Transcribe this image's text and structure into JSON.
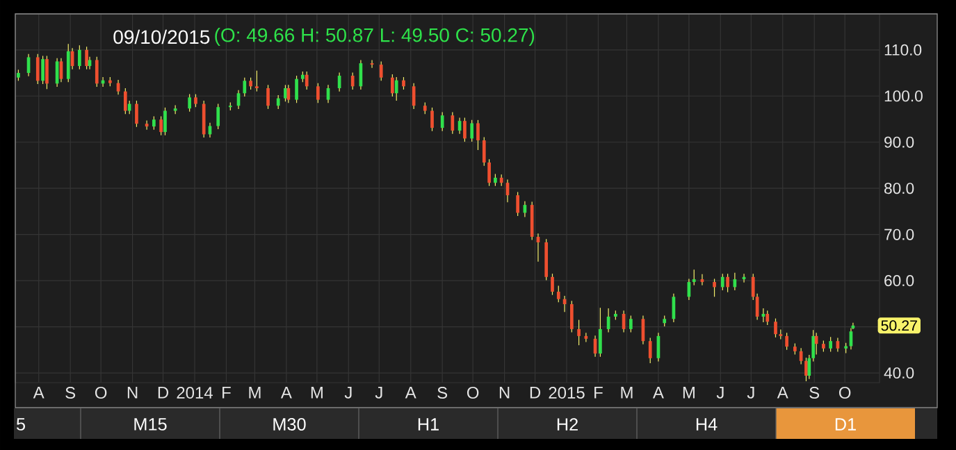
{
  "chart_data": {
    "type": "candlestick",
    "title": "09/10/2015",
    "subtitle": "(O: 49.66 H: 50.87 L: 49.50 C: 50.27)",
    "x": [
      "2013-07-12",
      "2013-07-22",
      "2013-07-31",
      "2013-08-05",
      "2013-08-09",
      "2013-08-19",
      "2013-08-23",
      "2013-08-30",
      "2013-09-03",
      "2013-09-10",
      "2013-09-17",
      "2013-09-20",
      "2013-09-27",
      "2013-10-03",
      "2013-10-10",
      "2013-10-18",
      "2013-10-25",
      "2013-10-29",
      "2013-11-05",
      "2013-11-15",
      "2013-11-22",
      "2013-11-29",
      "2013-12-03",
      "2013-12-13",
      "2013-12-27",
      "2014-01-02",
      "2014-01-10",
      "2014-01-16",
      "2014-01-24",
      "2014-02-05",
      "2014-02-13",
      "2014-02-19",
      "2014-02-25",
      "2014-03-03",
      "2014-03-14",
      "2014-03-24",
      "2014-03-31",
      "2014-04-03",
      "2014-04-11",
      "2014-04-17",
      "2014-04-21",
      "2014-05-02",
      "2014-05-12",
      "2014-05-23",
      "2014-06-05",
      "2014-06-13",
      "2014-06-24",
      "2014-07-03",
      "2014-07-14",
      "2014-07-18",
      "2014-07-25",
      "2014-08-04",
      "2014-08-15",
      "2014-08-22",
      "2014-09-01",
      "2014-09-11",
      "2014-09-18",
      "2014-09-23",
      "2014-09-30",
      "2014-10-06",
      "2014-10-12",
      "2014-10-17",
      "2014-10-23",
      "2014-10-29",
      "2014-11-04",
      "2014-11-14",
      "2014-11-21",
      "2014-11-28",
      "2014-12-04",
      "2014-12-12",
      "2014-12-18",
      "2014-12-24",
      "2014-12-30",
      "2015-01-06",
      "2015-01-13",
      "2015-01-20",
      "2015-01-29",
      "2015-02-03",
      "2015-02-11",
      "2015-02-18",
      "2015-02-26",
      "2015-03-05",
      "2015-03-17",
      "2015-03-24",
      "2015-04-01",
      "2015-04-07",
      "2015-04-16",
      "2015-05-01",
      "2015-05-06",
      "2015-05-14",
      "2015-05-26",
      "2015-06-03",
      "2015-06-08",
      "2015-06-15",
      "2015-06-24",
      "2015-07-03",
      "2015-07-07",
      "2015-07-13",
      "2015-07-17",
      "2015-07-25",
      "2015-07-30",
      "2015-08-05",
      "2015-08-13",
      "2015-08-19",
      "2015-08-24",
      "2015-08-27",
      "2015-08-31",
      "2015-09-03",
      "2015-09-10",
      "2015-09-17",
      "2015-09-24",
      "2015-10-02",
      "2015-10-07",
      "2015-10-09"
    ],
    "ohlc": [
      [
        104.0,
        105.7,
        103.3,
        105.0
      ],
      [
        105.0,
        109.1,
        104.3,
        108.4
      ],
      [
        108.4,
        109.1,
        102.6,
        103.3
      ],
      [
        103.3,
        108.7,
        102.6,
        108.0
      ],
      [
        108.0,
        108.7,
        101.5,
        102.7
      ],
      [
        102.7,
        108.2,
        102.0,
        107.5
      ],
      [
        107.5,
        108.2,
        103.0,
        103.7
      ],
      [
        103.7,
        111.3,
        103.0,
        109.7
      ],
      [
        109.7,
        110.4,
        105.8,
        106.5
      ],
      [
        106.5,
        111.0,
        105.8,
        110.0
      ],
      [
        110.0,
        110.7,
        105.8,
        106.5
      ],
      [
        106.5,
        108.5,
        105.8,
        107.8
      ],
      [
        107.8,
        108.5,
        102.0,
        102.7
      ],
      [
        102.7,
        104.1,
        102.0,
        103.4
      ],
      [
        103.4,
        104.1,
        102.1,
        102.8
      ],
      [
        102.8,
        103.5,
        100.3,
        101.0
      ],
      [
        101.0,
        101.7,
        96.1,
        96.8
      ],
      [
        96.8,
        99.0,
        96.1,
        98.3
      ],
      [
        98.3,
        99.0,
        93.3,
        94.0
      ],
      [
        94.0,
        94.7,
        92.7,
        93.4
      ],
      [
        93.4,
        95.6,
        92.7,
        94.9
      ],
      [
        94.9,
        95.6,
        91.5,
        92.2
      ],
      [
        92.2,
        97.5,
        91.5,
        96.8
      ],
      [
        96.8,
        98.0,
        96.1,
        97.3
      ],
      [
        97.3,
        100.4,
        96.6,
        99.7
      ],
      [
        99.7,
        100.4,
        97.6,
        98.3
      ],
      [
        98.3,
        99.0,
        91.0,
        91.7
      ],
      [
        91.7,
        94.2,
        91.0,
        93.5
      ],
      [
        93.5,
        98.3,
        92.8,
        97.6
      ],
      [
        97.6,
        98.6,
        96.9,
        97.9
      ],
      [
        97.9,
        101.3,
        97.2,
        100.6
      ],
      [
        100.6,
        104.0,
        99.9,
        103.3
      ],
      [
        103.3,
        104.0,
        101.4,
        102.1
      ],
      [
        102.1,
        105.5,
        101.0,
        101.7
      ],
      [
        101.7,
        102.4,
        97.2,
        97.9
      ],
      [
        97.9,
        100.2,
        97.2,
        99.5
      ],
      [
        99.5,
        102.4,
        98.8,
        101.7
      ],
      [
        101.7,
        102.4,
        98.5,
        99.2
      ],
      [
        99.2,
        104.4,
        98.5,
        103.7
      ],
      [
        103.7,
        105.3,
        103.0,
        104.6
      ],
      [
        104.6,
        105.3,
        101.4,
        102.1
      ],
      [
        102.1,
        102.8,
        98.5,
        99.2
      ],
      [
        99.2,
        102.4,
        98.5,
        101.7
      ],
      [
        101.7,
        105.1,
        101.0,
        104.4
      ],
      [
        104.4,
        105.1,
        101.4,
        102.1
      ],
      [
        102.1,
        107.8,
        101.4,
        107.1
      ],
      [
        107.1,
        107.8,
        106.1,
        106.8
      ],
      [
        106.8,
        107.5,
        103.3,
        104.0
      ],
      [
        104.0,
        104.7,
        99.9,
        100.6
      ],
      [
        100.6,
        104.1,
        99.0,
        103.4
      ],
      [
        103.4,
        104.1,
        101.4,
        102.1
      ],
      [
        102.1,
        102.8,
        97.2,
        97.9
      ],
      [
        97.9,
        98.6,
        96.1,
        96.8
      ],
      [
        96.8,
        97.5,
        92.4,
        93.1
      ],
      [
        93.1,
        96.5,
        92.4,
        95.8
      ],
      [
        95.8,
        96.5,
        91.8,
        92.5
      ],
      [
        92.5,
        95.3,
        91.8,
        94.6
      ],
      [
        94.6,
        95.3,
        90.1,
        90.8
      ],
      [
        90.8,
        94.8,
        90.1,
        94.1
      ],
      [
        94.1,
        94.8,
        88.3,
        90.4
      ],
      [
        90.4,
        91.1,
        84.9,
        85.6
      ],
      [
        85.6,
        86.3,
        80.5,
        81.2
      ],
      [
        81.2,
        83.1,
        80.5,
        82.3
      ],
      [
        82.3,
        83.0,
        80.5,
        81.2
      ],
      [
        81.2,
        81.9,
        77.0,
        78.5
      ],
      [
        78.5,
        79.2,
        74.0,
        74.7
      ],
      [
        74.7,
        77.2,
        73.8,
        76.4
      ],
      [
        76.4,
        77.1,
        68.8,
        69.5
      ],
      [
        69.5,
        70.2,
        64.1,
        68.3
      ],
      [
        68.3,
        69.0,
        60.1,
        60.8
      ],
      [
        60.8,
        61.5,
        56.9,
        57.6
      ],
      [
        57.6,
        58.9,
        55.3,
        56.0
      ],
      [
        56.0,
        56.7,
        53.2,
        54.9
      ],
      [
        54.9,
        55.6,
        48.8,
        49.5
      ],
      [
        49.5,
        51.5,
        46.0,
        48.0
      ],
      [
        48.0,
        48.7,
        46.7,
        47.4
      ],
      [
        47.4,
        48.1,
        43.5,
        44.2
      ],
      [
        44.2,
        54.1,
        43.5,
        49.5
      ],
      [
        49.5,
        54.0,
        48.8,
        52.2
      ],
      [
        52.2,
        53.5,
        51.5,
        52.8
      ],
      [
        52.8,
        53.5,
        48.8,
        49.5
      ],
      [
        49.5,
        52.4,
        48.8,
        51.7
      ],
      [
        51.7,
        52.4,
        46.2,
        46.9
      ],
      [
        46.9,
        47.6,
        42.1,
        43.2
      ],
      [
        43.2,
        48.7,
        42.5,
        48.0
      ],
      [
        50.8,
        52.4,
        50.1,
        51.7
      ],
      [
        51.7,
        57.2,
        51.0,
        56.5
      ],
      [
        56.5,
        60.4,
        55.8,
        59.7
      ],
      [
        59.7,
        62.4,
        59.0,
        60.3
      ],
      [
        60.3,
        61.4,
        59.0,
        59.7
      ],
      [
        59.7,
        60.4,
        56.5,
        58.6
      ],
      [
        58.6,
        61.5,
        57.9,
        60.8
      ],
      [
        60.8,
        61.5,
        57.5,
        58.6
      ],
      [
        58.6,
        61.7,
        57.9,
        60.3
      ],
      [
        60.3,
        61.5,
        59.6,
        60.8
      ],
      [
        60.8,
        61.5,
        55.8,
        56.5
      ],
      [
        56.5,
        57.2,
        51.5,
        52.2
      ],
      [
        52.2,
        54.0,
        51.0,
        52.8
      ],
      [
        52.8,
        53.5,
        50.4,
        51.1
      ],
      [
        51.1,
        51.8,
        47.7,
        48.4
      ],
      [
        48.4,
        49.4,
        47.3,
        48.0
      ],
      [
        48.0,
        48.7,
        45.0,
        45.7
      ],
      [
        45.7,
        46.4,
        44.0,
        44.7
      ],
      [
        44.7,
        45.4,
        41.9,
        42.6
      ],
      [
        42.6,
        43.3,
        38.2,
        39.4
      ],
      [
        39.4,
        43.9,
        38.7,
        43.2
      ],
      [
        43.2,
        49.3,
        42.5,
        48.0
      ],
      [
        48.0,
        48.7,
        44.0,
        46.3
      ],
      [
        46.3,
        47.0,
        44.6,
        45.3
      ],
      [
        45.3,
        47.8,
        44.6,
        46.9
      ],
      [
        46.9,
        47.6,
        44.6,
        45.3
      ],
      [
        45.3,
        46.5,
        44.3,
        45.8
      ],
      [
        45.8,
        49.7,
        45.1,
        49.0
      ],
      [
        49.66,
        50.87,
        49.5,
        50.27
      ]
    ],
    "xlim": [
      "2013-07-09",
      "2015-11-04"
    ],
    "xticks": [
      {
        "value": "2013-08-01",
        "label": "A"
      },
      {
        "value": "2013-09-01",
        "label": "S"
      },
      {
        "value": "2013-10-01",
        "label": "O"
      },
      {
        "value": "2013-11-01",
        "label": "N"
      },
      {
        "value": "2013-12-01",
        "label": "D"
      },
      {
        "value": "2014-01-01",
        "label": "2014"
      },
      {
        "value": "2014-02-01",
        "label": "F"
      },
      {
        "value": "2014-03-01",
        "label": "M"
      },
      {
        "value": "2014-04-01",
        "label": "A"
      },
      {
        "value": "2014-05-01",
        "label": "M"
      },
      {
        "value": "2014-06-01",
        "label": "J"
      },
      {
        "value": "2014-07-01",
        "label": "J"
      },
      {
        "value": "2014-08-01",
        "label": "A"
      },
      {
        "value": "2014-09-01",
        "label": "S"
      },
      {
        "value": "2014-10-01",
        "label": "O"
      },
      {
        "value": "2014-11-01",
        "label": "N"
      },
      {
        "value": "2014-12-01",
        "label": "D"
      },
      {
        "value": "2015-01-01",
        "label": "2015"
      },
      {
        "value": "2015-02-01",
        "label": "F"
      },
      {
        "value": "2015-03-01",
        "label": "M"
      },
      {
        "value": "2015-04-01",
        "label": "A"
      },
      {
        "value": "2015-05-01",
        "label": "M"
      },
      {
        "value": "2015-06-01",
        "label": "J"
      },
      {
        "value": "2015-07-01",
        "label": "J"
      },
      {
        "value": "2015-08-01",
        "label": "A"
      },
      {
        "value": "2015-09-01",
        "label": "S"
      },
      {
        "value": "2015-10-01",
        "label": "O"
      }
    ],
    "ylim": [
      37.9,
      117.8
    ],
    "yticks": [
      {
        "value": 40,
        "label": "40.0"
      },
      {
        "value": 50,
        "label": null
      },
      {
        "value": 60,
        "label": "60.0"
      },
      {
        "value": 70,
        "label": "70.0"
      },
      {
        "value": 80,
        "label": "80.0"
      },
      {
        "value": 90,
        "label": "90.0"
      },
      {
        "value": 100,
        "label": "100.0"
      },
      {
        "value": 110,
        "label": "110.0"
      }
    ],
    "grid": true,
    "annotations": [
      "50.27",
      "5",
      "M15",
      "M30",
      "H1",
      "H2",
      "H4",
      "D1"
    ]
  }
}
